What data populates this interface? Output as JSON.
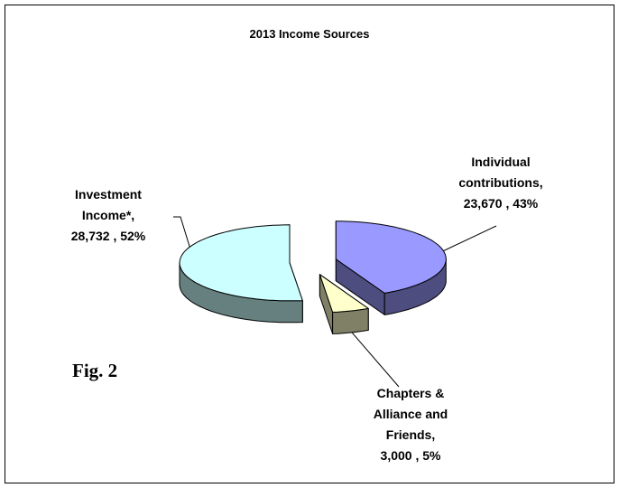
{
  "chart_data": {
    "type": "pie",
    "title": "2013 Income Sources",
    "categories": [
      "Individual contributions,",
      "Chapters & Alliance and Friends,",
      "Investment Income*,"
    ],
    "values": [
      23670,
      3000,
      28732
    ],
    "value_labels": [
      "23,670 , 43%",
      "3,000 , 5%",
      "28,732 , 52%"
    ],
    "colors": [
      "#9999ff",
      "#ffffcc",
      "#ccffff"
    ],
    "annotation": "Fig. 2"
  }
}
